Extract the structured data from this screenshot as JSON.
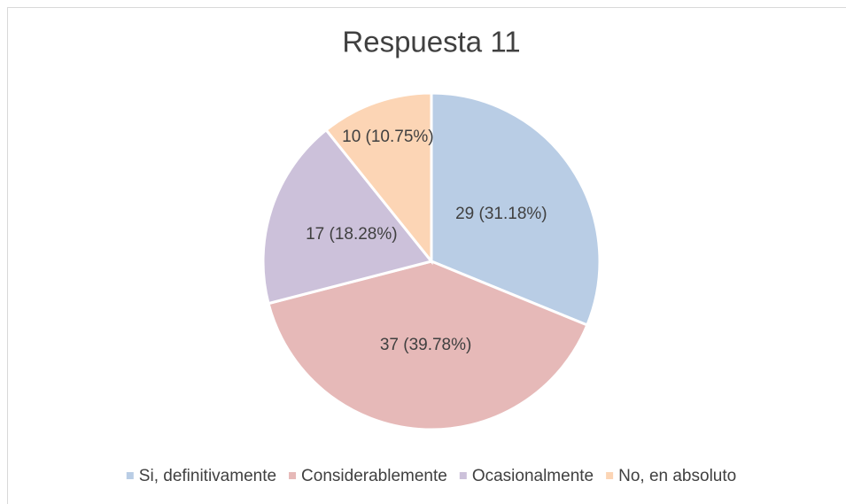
{
  "chart_data": {
    "type": "pie",
    "title": "Respuesta 11",
    "categories": [
      "Si, definitivamente",
      "Considerablemente",
      "Ocasionalmente",
      "No, en absoluto"
    ],
    "values": [
      29,
      37,
      17,
      10
    ],
    "value_labels": [
      "29 (31.18%)",
      "37 (39.78%)",
      "17 (18.28%)",
      "10 (10.75%)"
    ],
    "colors": [
      "#b9cde5",
      "#e6b9b8",
      "#ccc1da",
      "#fcd5b5"
    ],
    "legend": "bottom"
  }
}
